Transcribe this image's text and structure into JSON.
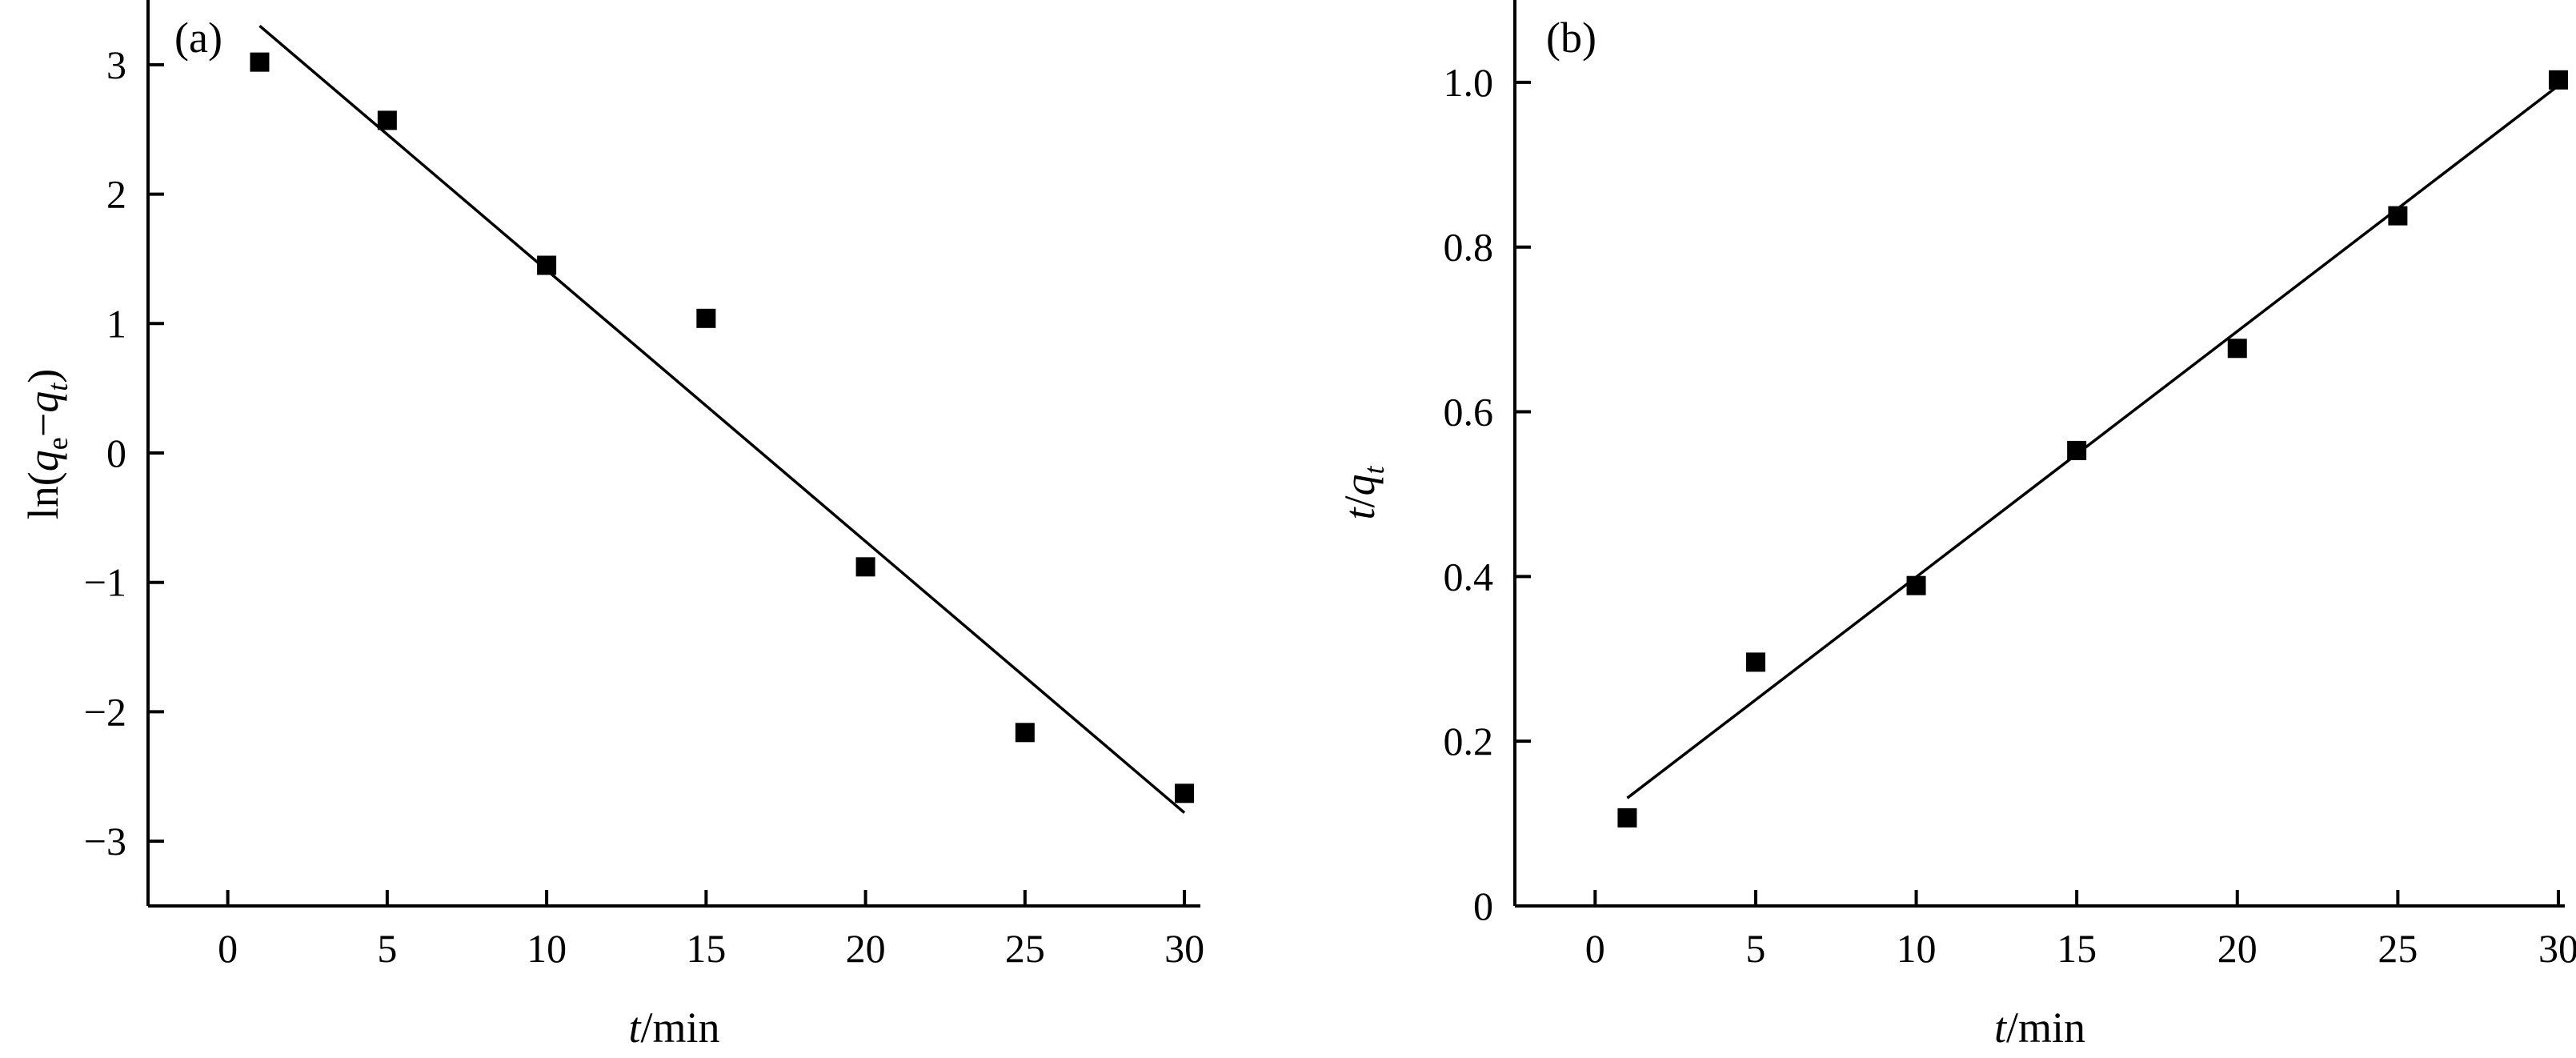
{
  "chart_data": [
    {
      "type": "scatter",
      "panel_label": "(a)",
      "title": "",
      "xlabel": {
        "var": "t",
        "unit": "/min"
      },
      "ylabel": {
        "prefix": "ln(",
        "q1": "q",
        "sub1": "e",
        "minus": "−",
        "q2": "q",
        "sub2": "t",
        "suffix": ")"
      },
      "xlim": [
        -2.5,
        30.5
      ],
      "ylim": [
        -3.5,
        3.5
      ],
      "xticks": [
        0,
        5,
        10,
        15,
        20,
        25,
        30
      ],
      "xtick_labels": [
        "0",
        "5",
        "10",
        "15",
        "20",
        "25",
        "30"
      ],
      "yticks": [
        3,
        2,
        1,
        0,
        -1,
        -2,
        -3
      ],
      "ytick_labels": [
        "3",
        "2",
        "1",
        "0",
        "−1",
        "−2",
        "−3"
      ],
      "grid": false,
      "points": {
        "x": [
          1,
          5,
          10,
          15,
          20,
          25,
          30
        ],
        "y": [
          3.02,
          2.57,
          1.45,
          1.04,
          -0.88,
          -2.16,
          -2.63
        ]
      },
      "fit_line": {
        "x": [
          1,
          30
        ],
        "y": [
          3.3,
          -2.78
        ]
      }
    },
    {
      "type": "scatter",
      "panel_label": "(b)",
      "title": "",
      "xlabel": {
        "var": "t",
        "unit": "/min"
      },
      "ylabel": {
        "var": "t",
        "slash": "/",
        "q": "q",
        "sub": "t"
      },
      "xlim": [
        -2.5,
        30.2
      ],
      "ylim": [
        0,
        1.1
      ],
      "xticks": [
        0,
        5,
        10,
        15,
        20,
        25,
        30
      ],
      "xtick_labels": [
        "0",
        "5",
        "10",
        "15",
        "20",
        "25",
        "30"
      ],
      "yticks": [
        0,
        0.2,
        0.4,
        0.6,
        0.8,
        1.0
      ],
      "ytick_labels": [
        "0",
        "0.2",
        "0.4",
        "0.6",
        "0.8",
        "1.0"
      ],
      "grid": false,
      "points": {
        "x": [
          1,
          5,
          10,
          15,
          20,
          25,
          30
        ],
        "y": [
          0.107,
          0.296,
          0.389,
          0.553,
          0.677,
          0.838,
          1.003
        ]
      },
      "fit_line": {
        "x": [
          1,
          30
        ],
        "y": [
          0.131,
          0.996
        ]
      }
    }
  ]
}
